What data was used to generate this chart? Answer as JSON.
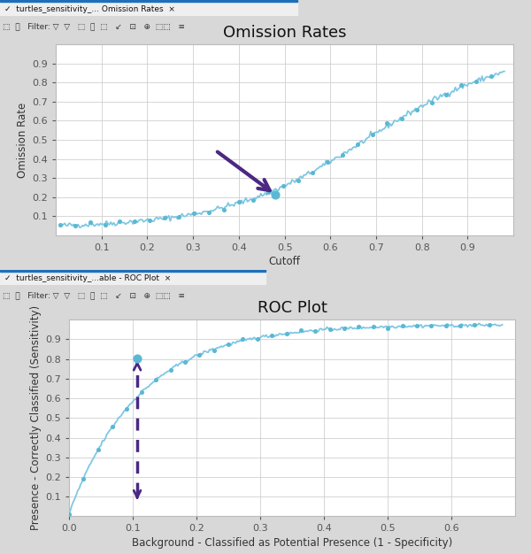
{
  "title1": "Omission Rates",
  "title2": "ROC Plot",
  "xlabel1": "Cutoff",
  "ylabel1": "Omission Rate",
  "xlabel2": "Background - Classified as Potential Presence (1 - Specificity)",
  "ylabel2": "Presence - Correctly Classified (Sensitivity)",
  "line_color": "#7EC8E3",
  "point_color": "#5BB8D4",
  "arrow_color": "#4B2882",
  "omission_cutoff_point": [
    0.479,
    0.215
  ],
  "roc_point": [
    0.107,
    0.805
  ],
  "omission_xlim": [
    0.0,
    1.0
  ],
  "omission_ylim": [
    0.0,
    1.0
  ],
  "roc_xlim": [
    0.0,
    0.7
  ],
  "roc_ylim": [
    0.0,
    1.0
  ],
  "omission_xticks": [
    0.1,
    0.2,
    0.3,
    0.4,
    0.5,
    0.6,
    0.7,
    0.8,
    0.9
  ],
  "omission_yticks": [
    0.1,
    0.2,
    0.3,
    0.4,
    0.5,
    0.6,
    0.7,
    0.8,
    0.9
  ],
  "roc_xticks": [
    0.0,
    0.1,
    0.2,
    0.3,
    0.4,
    0.5,
    0.6
  ],
  "roc_yticks": [
    0.1,
    0.2,
    0.3,
    0.4,
    0.5,
    0.6,
    0.7,
    0.8,
    0.9
  ],
  "title_fontsize": 13,
  "axis_label_fontsize": 8.5,
  "tick_fontsize": 8,
  "tab1_text": "turtles_sensitivity_... Omission Rates  ×",
  "tab2_text": "turtles_sensitivity_...able - ROC Plot  ×",
  "tab_blue": "#1E6FBA",
  "toolbar_bg": "#F0F0F0",
  "window_bg": "#F0F0F0",
  "grid_color": "#D0D0D0",
  "spine_color": "#BBBBBB"
}
